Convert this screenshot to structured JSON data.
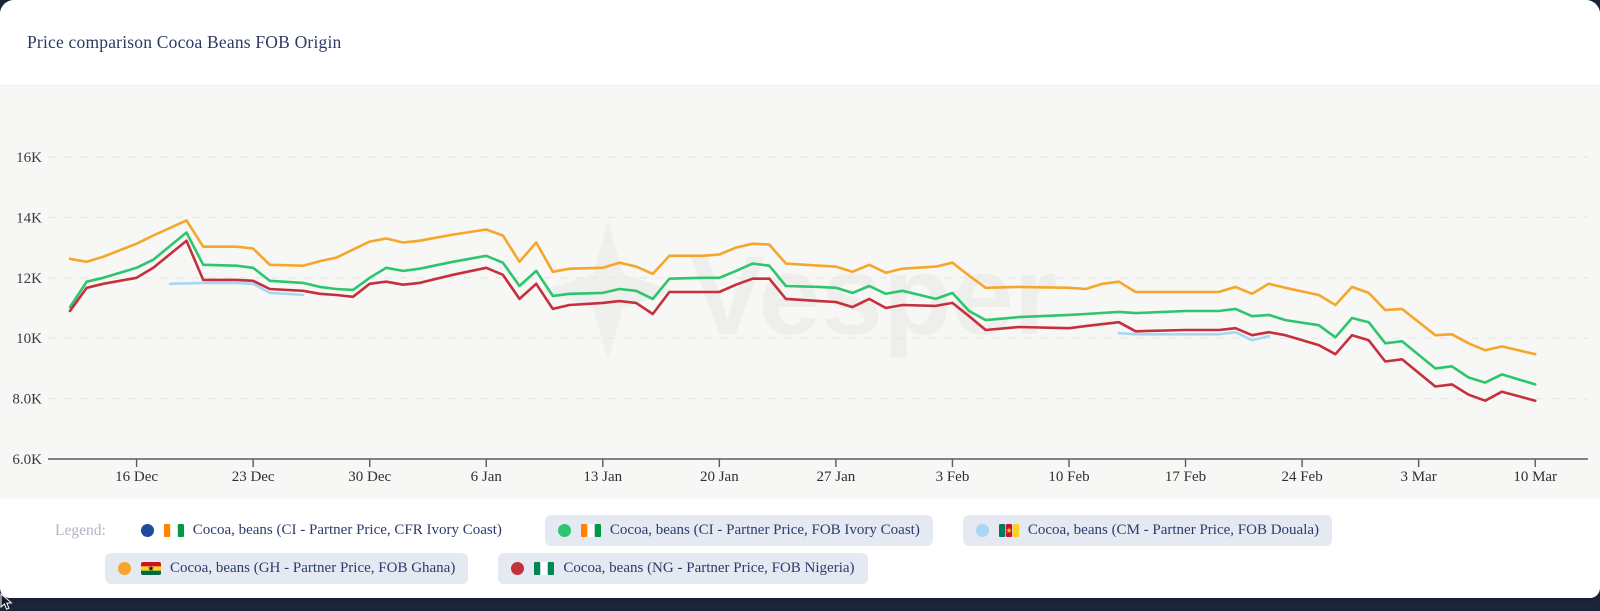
{
  "title": "Price comparison Cocoa Beans FOB Origin",
  "watermark": "Vesper",
  "legend": {
    "label": "Legend:",
    "items": [
      {
        "label": "Cocoa, beans (CI - Partner Price, CFR Ivory Coast)",
        "dot_color": "#1D4B9E",
        "flag": "ci",
        "pill": false,
        "active": false
      },
      {
        "label": "Cocoa, beans (CI - Partner Price, FOB Ivory Coast)",
        "dot_color": "#2EC56F",
        "flag": "ci",
        "pill": true,
        "active": true
      },
      {
        "label": "Cocoa, beans (CM - Partner Price, FOB Douala)",
        "dot_color": "#A8D7F3",
        "flag": "cm",
        "pill": true,
        "active": true
      },
      {
        "label": "Cocoa, beans (GH - Partner Price, FOB Ghana)",
        "dot_color": "#F6A62B",
        "flag": "gh",
        "pill": true,
        "active": true
      },
      {
        "label": "Cocoa, beans (NG - Partner Price, FOB Nigeria)",
        "dot_color": "#C62F3C",
        "flag": "ng",
        "pill": true,
        "active": true
      }
    ]
  },
  "colors": {
    "card_bg": "#FFFFFF",
    "chart_bg": "#F7F7F5",
    "page_bg": "#1B2438",
    "gridline": "#E9E9E5",
    "axis": "#5A5B5E",
    "tick_text": "#303030",
    "title_text": "#2C3A64",
    "legend_pill_bg": "#E4E9F2",
    "legend_text": "#2D3B6A",
    "legend_caption": "#B0B5BF"
  },
  "chart_data": {
    "type": "line",
    "title": "Price comparison Cocoa Beans FOB Origin",
    "xlabel": "",
    "ylabel": "",
    "ylim": [
      6000,
      16000
    ],
    "grid": "horizontal-dashed",
    "legend_position": "bottom",
    "x_unit": "days since 12 Dec",
    "yticks": [
      {
        "v": 16000,
        "label": "16K"
      },
      {
        "v": 14000,
        "label": "14K"
      },
      {
        "v": 12000,
        "label": "12K"
      },
      {
        "v": 10000,
        "label": "10K"
      },
      {
        "v": 8000,
        "label": "8.0K"
      },
      {
        "v": 6000,
        "label": "6.0K"
      }
    ],
    "xticks": [
      {
        "day": 4,
        "label": "16 Dec"
      },
      {
        "day": 11,
        "label": "23 Dec"
      },
      {
        "day": 18,
        "label": "30 Dec"
      },
      {
        "day": 25,
        "label": "6 Jan"
      },
      {
        "day": 32,
        "label": "13 Jan"
      },
      {
        "day": 39,
        "label": "20 Jan"
      },
      {
        "day": 46,
        "label": "27 Jan"
      },
      {
        "day": 53,
        "label": "3 Feb"
      },
      {
        "day": 60,
        "label": "10 Feb"
      },
      {
        "day": 67,
        "label": "17 Feb"
      },
      {
        "day": 74,
        "label": "24 Feb"
      },
      {
        "day": 81,
        "label": "3 Mar"
      },
      {
        "day": 88,
        "label": "10 Mar"
      }
    ],
    "plot_order": [
      "cm_douala",
      "gh_fob",
      "ci_fob",
      "ng_fob"
    ],
    "series": [
      {
        "id": "ci_cfr",
        "name": "Cocoa, beans (CI - Partner Price, CFR Ivory Coast)",
        "color": "#1D4B9E",
        "flag": "ci",
        "visible": false,
        "segments": []
      },
      {
        "id": "ci_fob",
        "name": "Cocoa, beans (CI - Partner Price, FOB Ivory Coast)",
        "color": "#2EC56F",
        "flag": "ci",
        "visible": true,
        "segments": [
          [
            [
              0,
              11030
            ],
            [
              1,
              11870
            ],
            [
              2,
              12000
            ],
            [
              4,
              12330
            ],
            [
              5,
              12600
            ],
            [
              7,
              13500
            ],
            [
              8,
              12430
            ],
            [
              10,
              12400
            ],
            [
              11,
              12330
            ],
            [
              12,
              11900
            ],
            [
              14,
              11830
            ],
            [
              15,
              11700
            ],
            [
              16,
              11630
            ],
            [
              17,
              11600
            ],
            [
              18,
              12000
            ],
            [
              19,
              12330
            ],
            [
              20,
              12230
            ],
            [
              21,
              12300
            ],
            [
              23,
              12530
            ],
            [
              25,
              12730
            ],
            [
              26,
              12500
            ],
            [
              27,
              11730
            ],
            [
              28,
              12230
            ],
            [
              29,
              11400
            ],
            [
              30,
              11470
            ],
            [
              32,
              11500
            ],
            [
              33,
              11630
            ],
            [
              34,
              11570
            ],
            [
              35,
              11300
            ],
            [
              36,
              11970
            ],
            [
              38,
              12000
            ],
            [
              39,
              12000
            ],
            [
              40,
              12230
            ],
            [
              41,
              12470
            ],
            [
              42,
              12400
            ],
            [
              43,
              11730
            ],
            [
              45,
              11700
            ],
            [
              46,
              11670
            ],
            [
              47,
              11500
            ],
            [
              48,
              11730
            ],
            [
              49,
              11470
            ],
            [
              50,
              11570
            ],
            [
              52,
              11300
            ],
            [
              53,
              11500
            ],
            [
              54,
              10900
            ],
            [
              55,
              10600
            ],
            [
              57,
              10700
            ],
            [
              60,
              10770
            ],
            [
              61,
              10800
            ],
            [
              63,
              10870
            ],
            [
              64,
              10830
            ],
            [
              67,
              10900
            ],
            [
              69,
              10900
            ],
            [
              70,
              10970
            ],
            [
              71,
              10730
            ],
            [
              72,
              10770
            ],
            [
              73,
              10600
            ],
            [
              75,
              10430
            ],
            [
              76,
              10030
            ],
            [
              77,
              10670
            ],
            [
              78,
              10530
            ],
            [
              79,
              9830
            ],
            [
              80,
              9900
            ],
            [
              82,
              9000
            ],
            [
              83,
              9070
            ],
            [
              84,
              8700
            ],
            [
              85,
              8530
            ],
            [
              86,
              8800
            ],
            [
              88,
              8470
            ]
          ]
        ]
      },
      {
        "id": "cm_douala",
        "name": "Cocoa, beans (CM - Partner Price, FOB Douala)",
        "color": "#A8D7F3",
        "flag": "cm",
        "visible": true,
        "segments": [
          [
            [
              6,
              11800
            ],
            [
              8,
              11830
            ],
            [
              10,
              11830
            ],
            [
              11,
              11800
            ],
            [
              12,
              11500
            ],
            [
              13,
              11470
            ],
            [
              14,
              11430
            ]
          ],
          [
            [
              63,
              10170
            ],
            [
              64,
              10130
            ],
            [
              67,
              10130
            ],
            [
              69,
              10130
            ],
            [
              70,
              10200
            ],
            [
              71,
              9930
            ],
            [
              72,
              10070
            ]
          ]
        ]
      },
      {
        "id": "gh_fob",
        "name": "Cocoa, beans (GH - Partner Price, FOB Ghana)",
        "color": "#F6A62B",
        "flag": "gh",
        "visible": true,
        "segments": [
          [
            [
              0,
              12630
            ],
            [
              1,
              12530
            ],
            [
              2,
              12700
            ],
            [
              4,
              13130
            ],
            [
              5,
              13400
            ],
            [
              7,
              13900
            ],
            [
              8,
              13030
            ],
            [
              10,
              13030
            ],
            [
              11,
              12970
            ],
            [
              12,
              12430
            ],
            [
              14,
              12400
            ],
            [
              15,
              12550
            ],
            [
              16,
              12670
            ],
            [
              18,
              13200
            ],
            [
              19,
              13300
            ],
            [
              20,
              13170
            ],
            [
              21,
              13230
            ],
            [
              23,
              13430
            ],
            [
              25,
              13600
            ],
            [
              26,
              13400
            ],
            [
              27,
              12530
            ],
            [
              28,
              13170
            ],
            [
              29,
              12200
            ],
            [
              30,
              12300
            ],
            [
              32,
              12330
            ],
            [
              33,
              12500
            ],
            [
              34,
              12370
            ],
            [
              35,
              12130
            ],
            [
              36,
              12730
            ],
            [
              38,
              12730
            ],
            [
              39,
              12770
            ],
            [
              40,
              13000
            ],
            [
              41,
              13130
            ],
            [
              42,
              13100
            ],
            [
              43,
              12470
            ],
            [
              45,
              12400
            ],
            [
              46,
              12370
            ],
            [
              47,
              12200
            ],
            [
              48,
              12430
            ],
            [
              49,
              12170
            ],
            [
              50,
              12300
            ],
            [
              52,
              12370
            ],
            [
              53,
              12500
            ],
            [
              54,
              12070
            ],
            [
              55,
              11670
            ],
            [
              57,
              11700
            ],
            [
              60,
              11670
            ],
            [
              61,
              11630
            ],
            [
              62,
              11800
            ],
            [
              63,
              11870
            ],
            [
              64,
              11530
            ],
            [
              67,
              11530
            ],
            [
              69,
              11530
            ],
            [
              70,
              11700
            ],
            [
              71,
              11470
            ],
            [
              72,
              11800
            ],
            [
              73,
              11670
            ],
            [
              75,
              11430
            ],
            [
              76,
              11100
            ],
            [
              77,
              11700
            ],
            [
              78,
              11500
            ],
            [
              79,
              10930
            ],
            [
              80,
              10970
            ],
            [
              82,
              10100
            ],
            [
              83,
              10130
            ],
            [
              84,
              9830
            ],
            [
              85,
              9600
            ],
            [
              86,
              9730
            ],
            [
              88,
              9470
            ]
          ]
        ]
      },
      {
        "id": "ng_fob",
        "name": "Cocoa, beans (NG - Partner Price, FOB Nigeria)",
        "color": "#C62F3C",
        "flag": "ng",
        "visible": true,
        "segments": [
          [
            [
              0,
              10900
            ],
            [
              1,
              11670
            ],
            [
              2,
              11800
            ],
            [
              4,
              12000
            ],
            [
              5,
              12330
            ],
            [
              7,
              13230
            ],
            [
              8,
              11930
            ],
            [
              10,
              11930
            ],
            [
              11,
              11900
            ],
            [
              12,
              11630
            ],
            [
              14,
              11570
            ],
            [
              15,
              11470
            ],
            [
              16,
              11430
            ],
            [
              17,
              11370
            ],
            [
              18,
              11800
            ],
            [
              19,
              11870
            ],
            [
              20,
              11770
            ],
            [
              21,
              11830
            ],
            [
              23,
              12100
            ],
            [
              25,
              12330
            ],
            [
              26,
              12100
            ],
            [
              27,
              11300
            ],
            [
              28,
              11800
            ],
            [
              29,
              10970
            ],
            [
              30,
              11100
            ],
            [
              32,
              11170
            ],
            [
              33,
              11230
            ],
            [
              34,
              11170
            ],
            [
              35,
              10800
            ],
            [
              36,
              11530
            ],
            [
              38,
              11530
            ],
            [
              39,
              11530
            ],
            [
              40,
              11770
            ],
            [
              41,
              11970
            ],
            [
              42,
              11970
            ],
            [
              43,
              11300
            ],
            [
              45,
              11230
            ],
            [
              46,
              11200
            ],
            [
              47,
              11030
            ],
            [
              48,
              11300
            ],
            [
              49,
              11000
            ],
            [
              50,
              11100
            ],
            [
              52,
              11070
            ],
            [
              53,
              11170
            ],
            [
              54,
              10730
            ],
            [
              55,
              10270
            ],
            [
              57,
              10370
            ],
            [
              60,
              10330
            ],
            [
              61,
              10400
            ],
            [
              63,
              10530
            ],
            [
              64,
              10230
            ],
            [
              67,
              10270
            ],
            [
              69,
              10270
            ],
            [
              70,
              10330
            ],
            [
              71,
              10100
            ],
            [
              72,
              10200
            ],
            [
              73,
              10100
            ],
            [
              75,
              9770
            ],
            [
              76,
              9470
            ],
            [
              77,
              10100
            ],
            [
              78,
              9930
            ],
            [
              79,
              9230
            ],
            [
              80,
              9300
            ],
            [
              82,
              8400
            ],
            [
              83,
              8470
            ],
            [
              84,
              8130
            ],
            [
              85,
              7930
            ],
            [
              86,
              8230
            ],
            [
              88,
              7930
            ]
          ]
        ]
      }
    ]
  }
}
